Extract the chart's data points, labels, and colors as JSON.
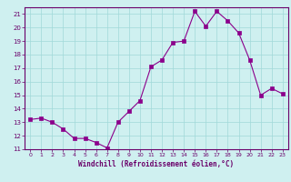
{
  "x": [
    0,
    1,
    2,
    3,
    4,
    5,
    6,
    7,
    8,
    9,
    10,
    11,
    12,
    13,
    14,
    15,
    16,
    17,
    18,
    19,
    20,
    21,
    22,
    23
  ],
  "y": [
    13.2,
    13.3,
    13.0,
    12.5,
    11.8,
    11.8,
    11.5,
    11.1,
    13.0,
    13.8,
    14.6,
    17.1,
    17.6,
    18.9,
    19.0,
    21.2,
    20.1,
    21.2,
    20.5,
    19.6,
    17.6,
    15.0,
    15.5,
    15.1
  ],
  "line_color": "#8B008B",
  "marker_color": "#8B008B",
  "bg_color": "#cff0f0",
  "grid_color": "#a0d8d8",
  "xlabel": "Windchill (Refroidissement éolien,°C)",
  "ylim": [
    11,
    21.5
  ],
  "xlim": [
    -0.5,
    23.5
  ],
  "yticks": [
    11,
    12,
    13,
    14,
    15,
    16,
    17,
    18,
    19,
    20,
    21
  ],
  "xticks": [
    0,
    1,
    2,
    3,
    4,
    5,
    6,
    7,
    8,
    9,
    10,
    11,
    12,
    13,
    14,
    15,
    16,
    17,
    18,
    19,
    20,
    21,
    22,
    23
  ],
  "tick_color": "#6a006a",
  "border_color": "#6a006a"
}
